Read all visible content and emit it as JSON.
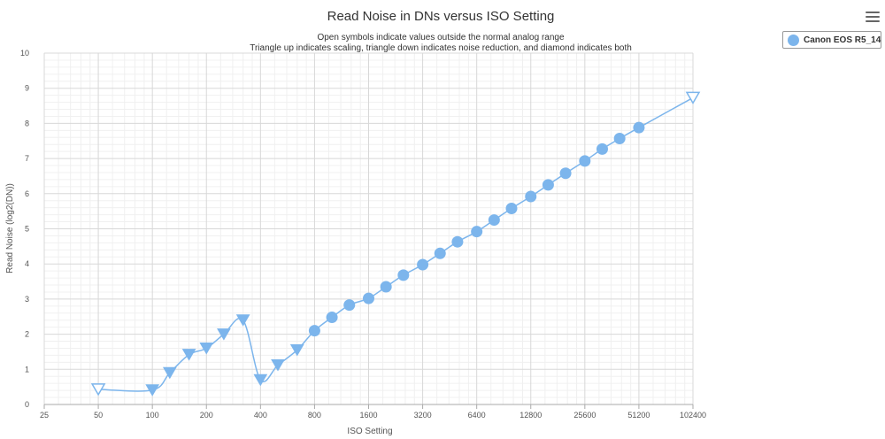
{
  "chart_data": {
    "type": "line",
    "title": "Read Noise in DNs versus ISO Setting",
    "subtitle_lines": [
      "Open symbols indicate values outside the normal analog range",
      "Triangle up indicates scaling, triangle down indicates noise reduction, and diamond indicates both"
    ],
    "xlabel": "ISO Setting",
    "ylabel": "Read Noise (log2(DN))",
    "x_scale": "log2",
    "xlim": [
      25,
      102400
    ],
    "ylim": [
      0,
      10
    ],
    "x_ticks": [
      25,
      50,
      100,
      200,
      400,
      800,
      1600,
      3200,
      6400,
      12800,
      25600,
      51200,
      102400
    ],
    "y_ticks": [
      0,
      1,
      2,
      3,
      4,
      5,
      6,
      7,
      8,
      9,
      10
    ],
    "grid": true,
    "legend_position": "top-right",
    "series": [
      {
        "name": "Canon EOS R5_14",
        "color": "#7cb5ec",
        "points": [
          {
            "x": 50,
            "y": 0.43,
            "marker": "triangle-down",
            "open": true
          },
          {
            "x": 100,
            "y": 0.41,
            "marker": "triangle-down",
            "open": false
          },
          {
            "x": 125,
            "y": 0.9,
            "marker": "triangle-down",
            "open": false
          },
          {
            "x": 160,
            "y": 1.42,
            "marker": "triangle-down",
            "open": false
          },
          {
            "x": 200,
            "y": 1.6,
            "marker": "triangle-down",
            "open": false
          },
          {
            "x": 250,
            "y": 2.0,
            "marker": "triangle-down",
            "open": false
          },
          {
            "x": 320,
            "y": 2.4,
            "marker": "triangle-down",
            "open": false
          },
          {
            "x": 400,
            "y": 0.7,
            "marker": "triangle-down",
            "open": false
          },
          {
            "x": 500,
            "y": 1.12,
            "marker": "triangle-down",
            "open": false
          },
          {
            "x": 640,
            "y": 1.55,
            "marker": "triangle-down",
            "open": false
          },
          {
            "x": 800,
            "y": 2.1,
            "marker": "circle",
            "open": false
          },
          {
            "x": 1000,
            "y": 2.48,
            "marker": "circle",
            "open": false
          },
          {
            "x": 1250,
            "y": 2.83,
            "marker": "circle",
            "open": false
          },
          {
            "x": 1600,
            "y": 3.02,
            "marker": "circle",
            "open": false
          },
          {
            "x": 2000,
            "y": 3.35,
            "marker": "circle",
            "open": false
          },
          {
            "x": 2500,
            "y": 3.68,
            "marker": "circle",
            "open": false
          },
          {
            "x": 3200,
            "y": 3.98,
            "marker": "circle",
            "open": false
          },
          {
            "x": 4000,
            "y": 4.3,
            "marker": "circle",
            "open": false
          },
          {
            "x": 5000,
            "y": 4.63,
            "marker": "circle",
            "open": false
          },
          {
            "x": 6400,
            "y": 4.92,
            "marker": "circle",
            "open": false
          },
          {
            "x": 8000,
            "y": 5.25,
            "marker": "circle",
            "open": false
          },
          {
            "x": 10000,
            "y": 5.58,
            "marker": "circle",
            "open": false
          },
          {
            "x": 12800,
            "y": 5.92,
            "marker": "circle",
            "open": false
          },
          {
            "x": 16000,
            "y": 6.25,
            "marker": "circle",
            "open": false
          },
          {
            "x": 20000,
            "y": 6.58,
            "marker": "circle",
            "open": false
          },
          {
            "x": 25600,
            "y": 6.93,
            "marker": "circle",
            "open": false
          },
          {
            "x": 32000,
            "y": 7.27,
            "marker": "circle",
            "open": false
          },
          {
            "x": 40000,
            "y": 7.57,
            "marker": "circle",
            "open": false
          },
          {
            "x": 51200,
            "y": 7.88,
            "marker": "circle",
            "open": false
          },
          {
            "x": 102400,
            "y": 8.73,
            "marker": "triangle-down",
            "open": true
          }
        ]
      }
    ]
  },
  "legend": {
    "label": "Canon EOS R5_14",
    "color": "#7cb5ec"
  },
  "menu": {
    "icon": "hamburger-menu-icon"
  }
}
